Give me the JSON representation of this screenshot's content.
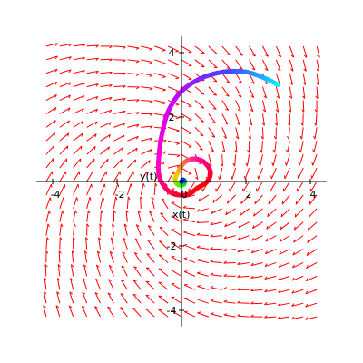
{
  "chart_data": {
    "type": "line",
    "title": "",
    "xlabel": "x(t)",
    "ylabel": "y(t)",
    "xlim": [
      -4.5,
      4.5
    ],
    "ylim": [
      -4.5,
      4.5
    ],
    "xticks": [
      -4,
      -2,
      0,
      2,
      4
    ],
    "yticks": [
      -4,
      -2,
      2,
      4
    ],
    "xtick_labels": [
      "-4",
      "-2",
      "0",
      "2",
      "4"
    ],
    "ytick_labels": [
      "-4",
      "-2",
      "2",
      "4"
    ],
    "grid": false,
    "vector_field": {
      "color": "#ff0000",
      "x_range": [
        -4.2,
        4.2
      ],
      "y_range": [
        -4.2,
        4.2
      ],
      "samples": 21,
      "vx": "y - 0.6*x",
      "vy": "-x - 0.6*y"
    },
    "trajectory": {
      "description_points": [
        [
          3.0,
          3.0
        ],
        [
          2.6,
          3.2
        ],
        [
          2.0,
          3.4
        ],
        [
          1.3,
          3.4
        ],
        [
          0.6,
          3.2
        ],
        [
          0.0,
          2.8
        ],
        [
          -0.4,
          2.2
        ],
        [
          -0.6,
          1.5
        ],
        [
          -0.7,
          0.8
        ],
        [
          -0.7,
          0.2
        ],
        [
          -0.5,
          -0.2
        ],
        [
          -0.2,
          -0.4
        ],
        [
          0.2,
          -0.4
        ],
        [
          0.5,
          -0.2
        ],
        [
          0.8,
          0.0
        ],
        [
          0.9,
          0.3
        ],
        [
          0.7,
          0.6
        ],
        [
          0.4,
          0.7
        ],
        [
          0.1,
          0.6
        ],
        [
          -0.1,
          0.3
        ],
        [
          -0.2,
          0.05
        ],
        [
          -0.1,
          -0.1
        ],
        [
          0.05,
          -0.1
        ],
        [
          0.1,
          0.0
        ],
        [
          0.05,
          0.05
        ],
        [
          0.0,
          0.0
        ]
      ],
      "colors": [
        "#00ffff",
        "#4444ff",
        "#cc00ff",
        "#ff00cc",
        "#ff0033",
        "#ff0000",
        "#ff00aa",
        "#ffcc00",
        "#00ff00",
        "#0000ff"
      ]
    }
  }
}
